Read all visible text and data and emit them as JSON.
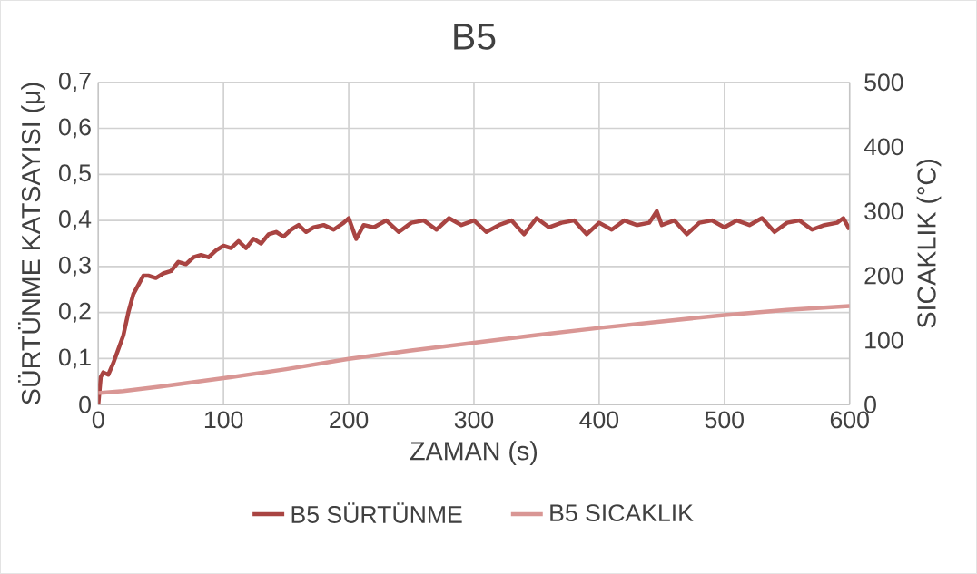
{
  "chart_data": {
    "type": "line",
    "title": "B5",
    "xlabel": "ZAMAN (s)",
    "ylabel": "SÜRTÜNME KATSAYISI (μ)",
    "y2label": "SICAKLIK (°C)",
    "xlim": [
      0,
      600
    ],
    "xticks": [
      0,
      100,
      200,
      300,
      400,
      500,
      600
    ],
    "ylim": [
      0,
      0.7
    ],
    "yticks": [
      {
        "value": 0,
        "label": "0"
      },
      {
        "value": 0.1,
        "label": "0,1"
      },
      {
        "value": 0.2,
        "label": "0,2"
      },
      {
        "value": 0.3,
        "label": "0,3"
      },
      {
        "value": 0.4,
        "label": "0,4"
      },
      {
        "value": 0.5,
        "label": "0,5"
      },
      {
        "value": 0.6,
        "label": "0,6"
      },
      {
        "value": 0.7,
        "label": "0,7"
      }
    ],
    "y2lim": [
      0,
      500
    ],
    "y2ticks": [
      0,
      100,
      200,
      300,
      400,
      500
    ],
    "grid": true,
    "legend": "bottom",
    "marker": "none",
    "line_style": "solid",
    "series": [
      {
        "name": "B5 SÜRTÜNME",
        "color": "#a94442",
        "x": [
          0,
          2,
          4,
          8,
          12,
          16,
          20,
          24,
          28,
          32,
          36,
          40,
          46,
          52,
          58,
          64,
          70,
          76,
          82,
          88,
          94,
          100,
          106,
          112,
          118,
          124,
          130,
          136,
          142,
          148,
          154,
          160,
          166,
          172,
          180,
          188,
          196,
          200,
          206,
          212,
          220,
          230,
          240,
          250,
          260,
          270,
          280,
          290,
          300,
          310,
          320,
          330,
          340,
          350,
          360,
          370,
          380,
          390,
          400,
          410,
          420,
          430,
          440,
          446,
          450,
          460,
          470,
          480,
          490,
          500,
          510,
          520,
          530,
          540,
          550,
          560,
          570,
          580,
          590,
          595,
          600
        ],
        "values": [
          0,
          0.06,
          0.07,
          0.065,
          0.09,
          0.12,
          0.15,
          0.2,
          0.24,
          0.26,
          0.28,
          0.28,
          0.275,
          0.285,
          0.29,
          0.31,
          0.305,
          0.32,
          0.325,
          0.32,
          0.335,
          0.345,
          0.34,
          0.355,
          0.34,
          0.36,
          0.35,
          0.37,
          0.375,
          0.365,
          0.38,
          0.39,
          0.375,
          0.385,
          0.39,
          0.38,
          0.395,
          0.405,
          0.36,
          0.39,
          0.385,
          0.4,
          0.375,
          0.395,
          0.4,
          0.38,
          0.405,
          0.39,
          0.4,
          0.375,
          0.39,
          0.4,
          0.37,
          0.405,
          0.385,
          0.395,
          0.4,
          0.37,
          0.395,
          0.38,
          0.4,
          0.39,
          0.395,
          0.42,
          0.39,
          0.4,
          0.37,
          0.395,
          0.4,
          0.385,
          0.4,
          0.39,
          0.405,
          0.375,
          0.395,
          0.4,
          0.38,
          0.39,
          0.395,
          0.405,
          0.38
        ]
      },
      {
        "name": "B5 SICAKLIK",
        "color": "#d99694",
        "axis": "y2",
        "x": [
          0,
          20,
          50,
          100,
          150,
          200,
          250,
          300,
          350,
          400,
          450,
          500,
          550,
          600
        ],
        "values": [
          18,
          21,
          28,
          41,
          55,
          71,
          84,
          96,
          108,
          119,
          129,
          139,
          147,
          153
        ]
      }
    ]
  }
}
